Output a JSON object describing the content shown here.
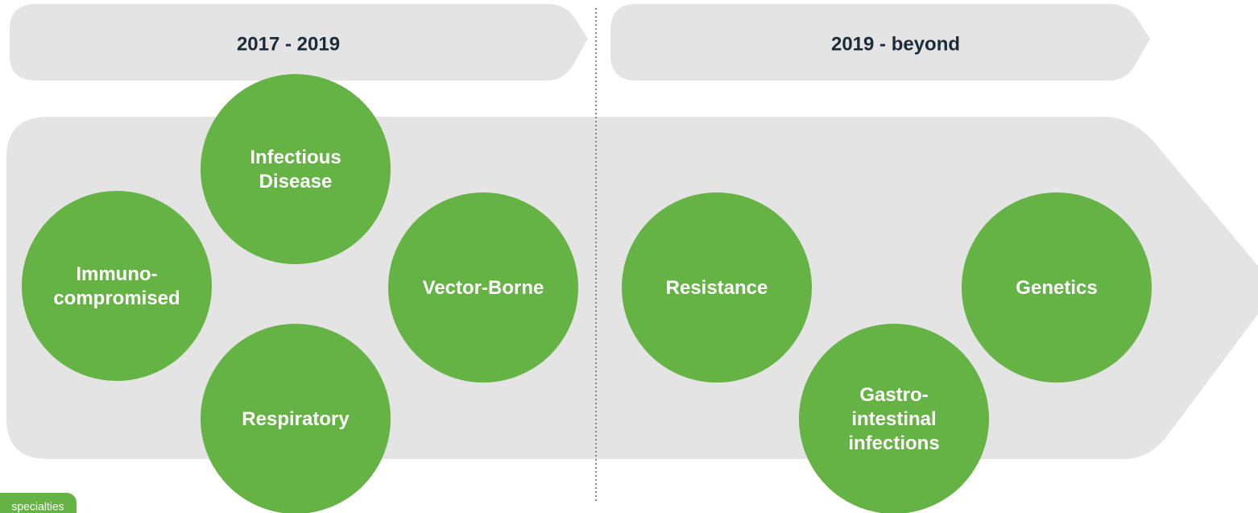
{
  "periods": [
    {
      "label": "2017 - 2019"
    },
    {
      "label": "2019 - beyond"
    }
  ],
  "nodes": [
    {
      "lines": [
        "Infectious",
        "Disease"
      ]
    },
    {
      "lines": [
        "Immuno-",
        "compromised"
      ]
    },
    {
      "lines": [
        "Vector-Borne"
      ]
    },
    {
      "lines": [
        "Respiratory"
      ]
    },
    {
      "lines": [
        "Resistance"
      ]
    },
    {
      "lines": [
        "Gastro-",
        "intestinal",
        "infections"
      ]
    },
    {
      "lines": [
        "Genetics"
      ]
    }
  ],
  "badge": "specialties"
}
